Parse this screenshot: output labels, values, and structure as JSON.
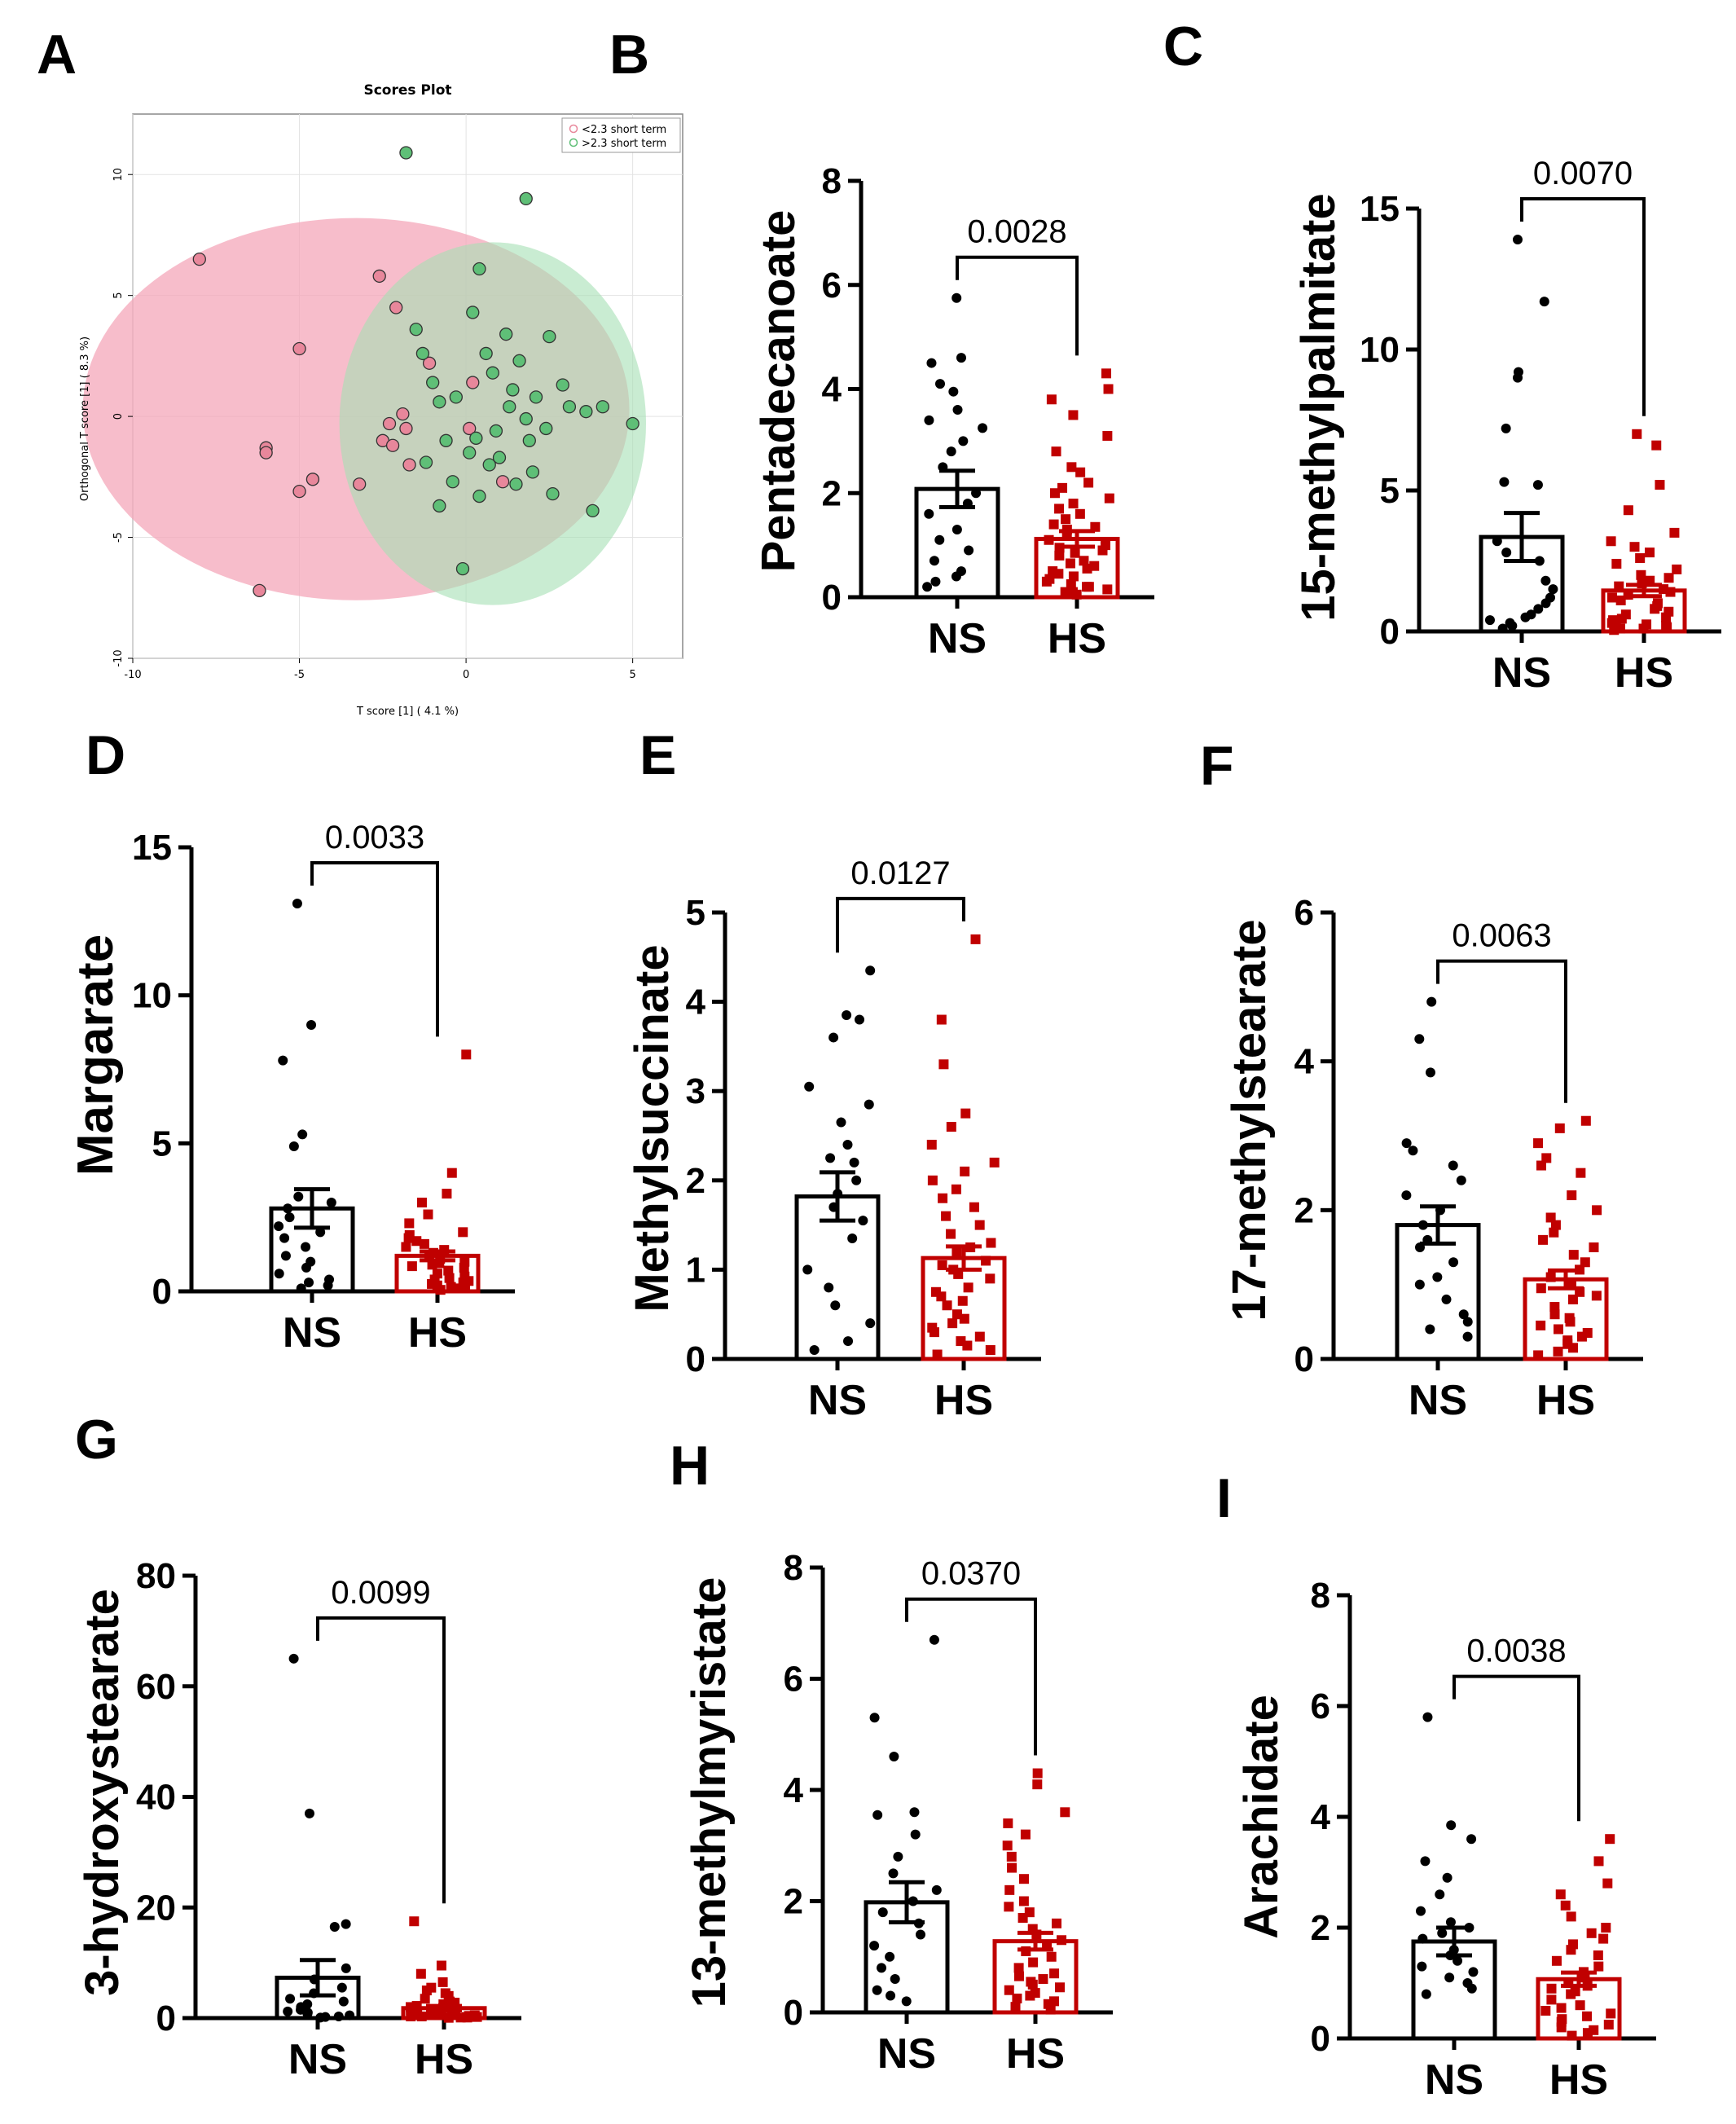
{
  "figure": {
    "colors": {
      "ns": "#000000",
      "hs": "#c00000",
      "pink": "#f4a7b9",
      "green": "#a5dfb4"
    }
  },
  "chart_data": [
    {
      "panel": "A",
      "type": "scatter",
      "title": "Scores Plot",
      "xlabel": "T score [1] ( 4.1 %)",
      "ylabel": "Orthogonal T score [1] ( 8.3 %)",
      "xlim": [
        -10,
        6.5
      ],
      "ylim": [
        -10,
        12.5
      ],
      "xticks": [
        "-10",
        "-5",
        "0",
        "5"
      ],
      "yticks": [
        "-10",
        "-5",
        "0",
        "5",
        "10"
      ],
      "legend": [
        "<2.3 short term",
        ">2.3 short term"
      ],
      "legend_position": "top-right",
      "series": [
        {
          "name": "<2.3 short term",
          "color": "#e8879b",
          "ellipse": {
            "cx": -3.3,
            "cy": 0.3,
            "rx": 8.2,
            "ry": 7.9
          },
          "points": [
            [
              -8,
              6.5
            ],
            [
              -6,
              -1.3
            ],
            [
              -6,
              -1.5
            ],
            [
              -5,
              2.8
            ],
            [
              -5,
              -3.1
            ],
            [
              -4.6,
              -2.6
            ],
            [
              -3.2,
              -2.8
            ],
            [
              -2.6,
              5.8
            ],
            [
              -2.5,
              -1
            ],
            [
              -2.3,
              -0.3
            ],
            [
              -2.1,
              4.5
            ],
            [
              -2.2,
              -1.2
            ],
            [
              -1.8,
              -0.5
            ],
            [
              -1.7,
              -2
            ],
            [
              -1.1,
              2.2
            ],
            [
              -6.2,
              -7.2
            ],
            [
              -1.9,
              0.1
            ],
            [
              0.2,
              1.4
            ],
            [
              1.1,
              -2.7
            ],
            [
              0.1,
              -0.5
            ]
          ]
        },
        {
          "name": ">2.3 short term",
          "color": "#5fbf77",
          "ellipse": {
            "cx": 0.8,
            "cy": -0.3,
            "rx": 4.6,
            "ry": 7.5
          },
          "points": [
            [
              -1.8,
              10.9
            ],
            [
              1.8,
              9
            ],
            [
              0.4,
              6.1
            ],
            [
              0.2,
              4.3
            ],
            [
              -1.5,
              3.6
            ],
            [
              -1.3,
              2.6
            ],
            [
              0.6,
              2.6
            ],
            [
              1.2,
              3.4
            ],
            [
              2.5,
              3.3
            ],
            [
              0.8,
              1.8
            ],
            [
              1.6,
              2.3
            ],
            [
              -1,
              1.4
            ],
            [
              -0.8,
              0.6
            ],
            [
              -0.6,
              -1
            ],
            [
              0.1,
              -1.5
            ],
            [
              0.7,
              -2
            ],
            [
              0.9,
              -0.6
            ],
            [
              1.3,
              0.4
            ],
            [
              1.8,
              -0.1
            ],
            [
              2.1,
              0.8
            ],
            [
              2.4,
              -0.5
            ],
            [
              2.9,
              1.3
            ],
            [
              3.1,
              0.4
            ],
            [
              -0.4,
              -2.7
            ],
            [
              -0.8,
              -3.7
            ],
            [
              0.4,
              -3.3
            ],
            [
              1.5,
              -2.8
            ],
            [
              2,
              -2.3
            ],
            [
              2.6,
              -3.2
            ],
            [
              3.8,
              -3.9
            ],
            [
              4.1,
              0.4
            ],
            [
              5,
              -0.3
            ],
            [
              -0.1,
              -6.3
            ],
            [
              3.6,
              0.2
            ],
            [
              1,
              -1.7
            ],
            [
              1.9,
              -1
            ],
            [
              -1.2,
              -1.9
            ],
            [
              0.3,
              -0.9
            ],
            [
              1.4,
              1.1
            ],
            [
              -0.3,
              0.8
            ]
          ]
        }
      ]
    },
    {
      "panel": "B",
      "type": "bar",
      "ylabel": "Pentadecanoate",
      "pvalue": "0.0028",
      "categories": [
        "NS",
        "HS"
      ],
      "ylim": [
        0,
        8
      ],
      "yticks": [
        "0",
        "2",
        "4",
        "6",
        "8"
      ],
      "means": [
        2.08,
        1.12
      ],
      "sem": [
        0.35,
        0.15
      ],
      "points": [
        [
          5.75,
          4.6,
          4.5,
          4.1,
          3.95,
          3.6,
          3.4,
          3.25,
          3.0,
          2.8,
          2.5,
          2.0,
          1.8,
          1.6,
          1.3,
          1.1,
          0.9,
          0.7,
          0.5,
          0.4,
          0.3,
          0.2
        ],
        [
          4.3,
          4.0,
          3.8,
          3.5,
          3.1,
          2.8,
          2.5,
          2.4,
          2.2,
          2.1,
          2.0,
          1.9,
          1.8,
          1.7,
          1.6,
          1.5,
          1.4,
          1.35,
          1.3,
          1.2,
          1.1,
          1.0,
          0.95,
          0.9,
          0.85,
          0.8,
          0.7,
          0.65,
          0.6,
          0.55,
          0.5,
          0.45,
          0.4,
          0.35,
          0.3,
          0.25,
          0.2,
          0.2,
          0.15,
          0.1,
          0.1,
          0.05
        ]
      ]
    },
    {
      "panel": "C",
      "type": "bar",
      "ylabel": "15-methylpalmitate",
      "pvalue": "0.0070",
      "categories": [
        "NS",
        "HS"
      ],
      "ylim": [
        0,
        15
      ],
      "yticks": [
        "0",
        "5",
        "10",
        "15"
      ],
      "means": [
        3.35,
        1.45
      ],
      "sem": [
        0.85,
        0.2
      ],
      "points": [
        [
          13.9,
          11.7,
          9.2,
          9.0,
          7.2,
          5.3,
          5.2,
          3.2,
          2.8,
          2.5,
          1.8,
          1.5,
          1.2,
          1.0,
          0.8,
          0.6,
          0.5,
          0.4,
          0.3,
          0.2,
          0.1
        ],
        [
          7.0,
          6.6,
          5.2,
          4.3,
          3.5,
          3.2,
          3.0,
          2.8,
          2.6,
          2.4,
          2.2,
          2.0,
          1.9,
          1.8,
          1.7,
          1.6,
          1.5,
          1.4,
          1.3,
          1.2,
          1.1,
          1.0,
          0.9,
          0.8,
          0.7,
          0.6,
          0.5,
          0.45,
          0.4,
          0.35,
          0.3,
          0.25,
          0.2,
          0.15,
          0.1,
          0.1,
          0.05
        ]
      ]
    },
    {
      "panel": "D",
      "type": "bar",
      "ylabel": "Margarate",
      "pvalue": "0.0033",
      "categories": [
        "NS",
        "HS"
      ],
      "ylim": [
        0,
        15
      ],
      "yticks": [
        "0",
        "5",
        "10",
        "15"
      ],
      "means": [
        2.8,
        1.2
      ],
      "sem": [
        0.65,
        0.15
      ],
      "points": [
        [
          13.1,
          9.0,
          7.8,
          5.3,
          4.9,
          3.2,
          3.0,
          2.8,
          2.5,
          2.2,
          2.0,
          1.8,
          1.5,
          1.2,
          1.0,
          0.8,
          0.6,
          0.4,
          0.3,
          0.2,
          0.1
        ],
        [
          8.0,
          4.0,
          3.3,
          3.0,
          2.6,
          2.3,
          2.0,
          1.9,
          1.8,
          1.7,
          1.6,
          1.5,
          1.4,
          1.3,
          1.2,
          1.1,
          1.0,
          0.95,
          0.9,
          0.85,
          0.8,
          0.7,
          0.6,
          0.5,
          0.45,
          0.4,
          0.35,
          0.3,
          0.25,
          0.2,
          0.15,
          0.1,
          0.1,
          0.05
        ]
      ]
    },
    {
      "panel": "E",
      "type": "bar",
      "ylabel": "Methylsuccinate",
      "pvalue": "0.0127",
      "categories": [
        "NS",
        "HS"
      ],
      "ylim": [
        0,
        5
      ],
      "yticks": [
        "0",
        "1",
        "2",
        "3",
        "4",
        "5"
      ],
      "means": [
        1.82,
        1.13
      ],
      "sem": [
        0.27,
        0.13
      ],
      "points": [
        [
          4.35,
          3.85,
          3.8,
          3.6,
          3.05,
          2.85,
          2.65,
          2.4,
          2.25,
          2.2,
          2.0,
          1.85,
          1.7,
          1.55,
          1.35,
          1.0,
          0.8,
          0.6,
          0.4,
          0.2,
          0.1
        ],
        [
          4.7,
          3.8,
          3.3,
          2.75,
          2.6,
          2.4,
          2.2,
          2.1,
          2.0,
          1.9,
          1.8,
          1.7,
          1.6,
          1.5,
          1.4,
          1.3,
          1.25,
          1.2,
          1.1,
          1.05,
          1.0,
          0.95,
          0.9,
          0.8,
          0.75,
          0.7,
          0.65,
          0.6,
          0.5,
          0.45,
          0.4,
          0.35,
          0.3,
          0.25,
          0.2,
          0.15,
          0.1,
          0.05
        ]
      ]
    },
    {
      "panel": "F",
      "type": "bar",
      "ylabel": "17-methylstearate",
      "pvalue": "0.0063",
      "categories": [
        "NS",
        "HS"
      ],
      "ylim": [
        0,
        6
      ],
      "yticks": [
        "0",
        "2",
        "4",
        "6"
      ],
      "means": [
        1.8,
        1.07
      ],
      "sem": [
        0.25,
        0.12
      ],
      "points": [
        [
          4.8,
          4.3,
          3.85,
          2.9,
          2.8,
          2.6,
          2.4,
          2.2,
          2.0,
          1.8,
          1.6,
          1.5,
          1.3,
          1.1,
          1.0,
          0.8,
          0.6,
          0.5,
          0.4,
          0.3
        ],
        [
          3.2,
          3.1,
          2.9,
          2.7,
          2.6,
          2.5,
          2.2,
          2.0,
          1.9,
          1.8,
          1.7,
          1.6,
          1.5,
          1.4,
          1.3,
          1.2,
          1.1,
          1.0,
          0.95,
          0.9,
          0.85,
          0.8,
          0.7,
          0.6,
          0.55,
          0.5,
          0.45,
          0.4,
          0.35,
          0.3,
          0.25,
          0.2,
          0.15,
          0.1,
          0.05
        ]
      ]
    },
    {
      "panel": "G",
      "type": "bar",
      "ylabel": "3-hydroxystearate",
      "pvalue": "0.0099",
      "categories": [
        "NS",
        "HS"
      ],
      "ylim": [
        0,
        80
      ],
      "yticks": [
        "0",
        "20",
        "40",
        "60",
        "80"
      ],
      "means": [
        7.3,
        1.8
      ],
      "sem": [
        3.2,
        0.4
      ],
      "points": [
        [
          65,
          37,
          17,
          16.5,
          9,
          7,
          5.5,
          4.5,
          3.5,
          3.0,
          2.5,
          2.0,
          1.5,
          1.2,
          1.0,
          0.8,
          0.5,
          0.3,
          0.2,
          0.1
        ],
        [
          17.5,
          9.5,
          8.0,
          6.5,
          5.5,
          5.0,
          4.5,
          4.0,
          3.5,
          3.0,
          2.8,
          2.5,
          2.2,
          2.0,
          1.8,
          1.6,
          1.4,
          1.2,
          1.0,
          0.9,
          0.8,
          0.7,
          0.6,
          0.5,
          0.4,
          0.3,
          0.3,
          0.2,
          0.2,
          0.1,
          0.1,
          0.05
        ]
      ]
    },
    {
      "panel": "H",
      "type": "bar",
      "ylabel": "13-methylmyristate",
      "pvalue": "0.0370",
      "categories": [
        "NS",
        "HS"
      ],
      "ylim": [
        0,
        8
      ],
      "yticks": [
        "0",
        "2",
        "4",
        "6",
        "8"
      ],
      "means": [
        1.98,
        1.28
      ],
      "sem": [
        0.36,
        0.15
      ],
      "points": [
        [
          6.7,
          5.3,
          4.6,
          3.6,
          3.55,
          3.2,
          2.8,
          2.5,
          2.2,
          2.0,
          1.8,
          1.6,
          1.4,
          1.2,
          1.0,
          0.8,
          0.6,
          0.4,
          0.3,
          0.2
        ],
        [
          4.3,
          4.1,
          3.6,
          3.4,
          3.2,
          3.0,
          2.8,
          2.6,
          2.4,
          2.2,
          2.0,
          1.9,
          1.8,
          1.7,
          1.6,
          1.5,
          1.4,
          1.3,
          1.2,
          1.1,
          1.0,
          0.9,
          0.8,
          0.7,
          0.65,
          0.6,
          0.55,
          0.5,
          0.45,
          0.4,
          0.35,
          0.3,
          0.25,
          0.2,
          0.15,
          0.1,
          0.05
        ]
      ]
    },
    {
      "panel": "I",
      "type": "bar",
      "ylabel": "Arachidate",
      "pvalue": "0.0038",
      "categories": [
        "NS",
        "HS"
      ],
      "ylim": [
        0,
        8
      ],
      "yticks": [
        "0",
        "2",
        "4",
        "6",
        "8"
      ],
      "means": [
        1.75,
        1.07
      ],
      "sem": [
        0.25,
        0.12
      ],
      "points": [
        [
          5.8,
          3.85,
          3.6,
          3.2,
          2.9,
          2.6,
          2.3,
          2.1,
          2.0,
          1.9,
          1.8,
          1.6,
          1.5,
          1.4,
          1.3,
          1.2,
          1.1,
          1.0,
          0.9,
          0.8
        ],
        [
          3.6,
          3.2,
          2.8,
          2.6,
          2.4,
          2.2,
          2.0,
          1.9,
          1.8,
          1.7,
          1.6,
          1.5,
          1.4,
          1.3,
          1.2,
          1.1,
          1.0,
          0.95,
          0.9,
          0.85,
          0.8,
          0.7,
          0.6,
          0.55,
          0.5,
          0.45,
          0.4,
          0.35,
          0.3,
          0.25,
          0.2,
          0.15,
          0.1,
          0.05
        ]
      ]
    }
  ]
}
